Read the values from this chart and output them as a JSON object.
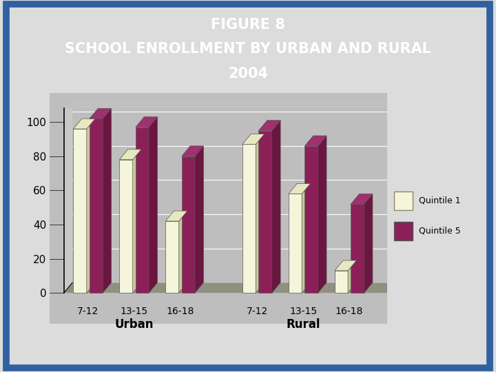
{
  "title_line1": "FIGURE 8",
  "title_line2": "SCHOOL ENROLLMENT BY URBAN AND RURAL",
  "title_line3": "2004",
  "title_bg_color": "#1C7FD4",
  "title_text_color": "#FFFFFF",
  "groups": [
    "Urban",
    "Rural"
  ],
  "age_groups": [
    "7-12",
    "13-15",
    "16-18"
  ],
  "q1_front_color": "#F5F5DC",
  "q1_top_color": "#E8E8C0",
  "q1_side_color": "#C8C89A",
  "q5_front_color": "#8B2058",
  "q5_top_color": "#A03070",
  "q5_side_color": "#6A1640",
  "data": {
    "Urban": {
      "7-12": {
        "Q1": 96,
        "Q5": 102
      },
      "13-15": {
        "Q1": 78,
        "Q5": 97
      },
      "16-18": {
        "Q1": 42,
        "Q5": 80
      }
    },
    "Rural": {
      "7-12": {
        "Q1": 87,
        "Q5": 95
      },
      "13-15": {
        "Q1": 58,
        "Q5": 86
      },
      "16-18": {
        "Q1": 13,
        "Q5": 52
      }
    }
  },
  "ylim": [
    0,
    108
  ],
  "yticks": [
    0,
    20,
    40,
    60,
    80,
    100
  ],
  "chart_bg_color": "#BEBEBE",
  "floor_color": "#909080",
  "outer_bg_color": "#DCDCDC",
  "border_color": "#3060A0",
  "legend_bg": "#FFFFFF",
  "legend_labels": [
    "Quintile 1",
    "Quintile 5"
  ]
}
